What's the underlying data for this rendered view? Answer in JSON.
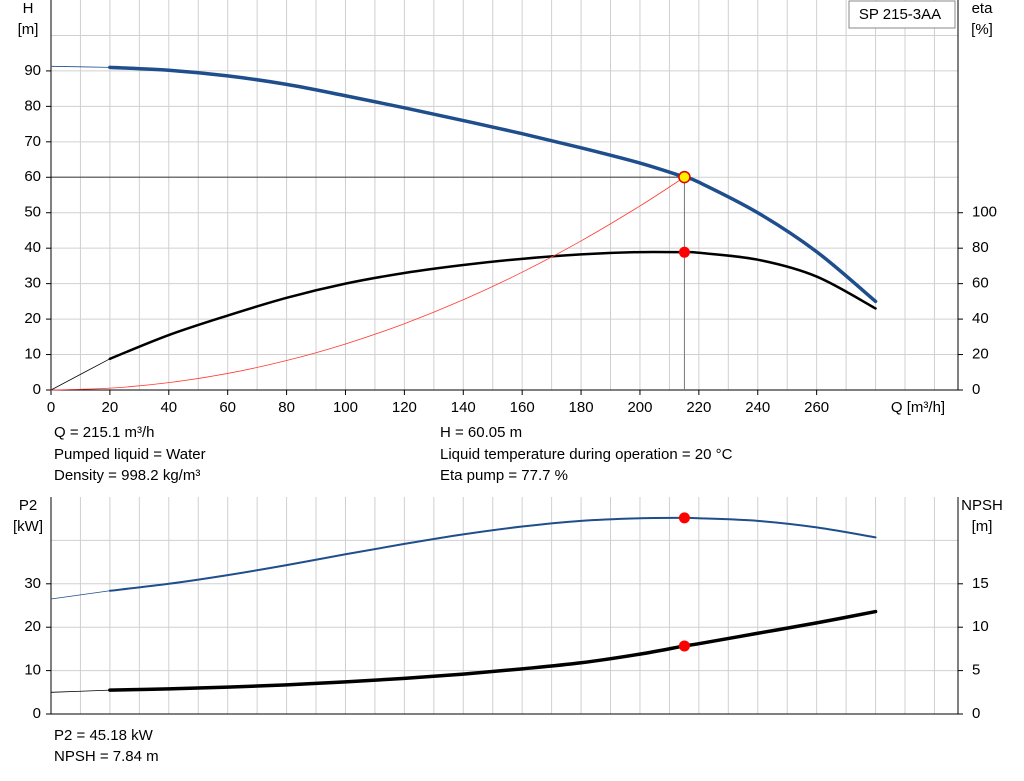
{
  "chart_data": [
    {
      "type": "line",
      "ylabel": "H",
      "yunit": "[m]",
      "y2label": "eta",
      "y2unit": "[%]",
      "xlabel": "Q [m³/h]",
      "badge": "SP 215-3AA",
      "x": [
        0,
        20,
        40,
        60,
        80,
        100,
        120,
        140,
        160,
        180,
        200,
        215.1,
        220,
        240,
        260,
        280
      ],
      "xlim": [
        0,
        308
      ],
      "xticks": [
        0,
        20,
        40,
        60,
        80,
        100,
        120,
        140,
        160,
        180,
        200,
        220,
        240,
        260
      ],
      "ylim": [
        0,
        110
      ],
      "yticks": [
        0,
        10,
        20,
        30,
        40,
        50,
        60,
        70,
        80,
        90
      ],
      "y2lim": [
        0,
        220
      ],
      "y2ticks": [
        0,
        20,
        40,
        60,
        80,
        100
      ],
      "grid": true,
      "thick_from": 20,
      "marker_at": 215.1,
      "crosshair": true,
      "series": [
        {
          "color": "#1f4e8c",
          "width": 3.5,
          "marker": "#ffee00",
          "values": [
            91.3,
            91,
            90.2,
            88.6,
            86.2,
            83,
            79.6,
            76,
            72.3,
            68.3,
            64,
            60.05,
            58.6,
            50,
            39,
            25
          ]
        },
        {
          "color": "#000000",
          "width": 2.5,
          "axis": "y2",
          "marker": "#ff0000",
          "values": [
            0,
            17.6,
            31,
            42,
            52,
            60,
            66,
            70.5,
            74,
            76.5,
            77.8,
            77.7,
            77.4,
            73.5,
            64,
            46
          ]
        },
        {
          "color": "#ff3b2f",
          "width": 0.8,
          "values": [
            0,
            0.52,
            2.08,
            4.67,
            8.31,
            12.98,
            18.69,
            25.44,
            33.23,
            42.05,
            51.91,
            60.05,
            null,
            null,
            null,
            null
          ]
        }
      ]
    },
    {
      "type": "line",
      "ylabel": "P2",
      "yunit": "[kW]",
      "y2label": "NPSH",
      "y2unit": "[m]",
      "x": [
        0,
        20,
        40,
        60,
        80,
        100,
        120,
        140,
        160,
        180,
        200,
        215.1,
        220,
        240,
        260,
        280
      ],
      "xlim": [
        0,
        308
      ],
      "ylim": [
        0,
        50
      ],
      "yticks": [
        0,
        10,
        20,
        30
      ],
      "y2lim": [
        0,
        25
      ],
      "y2ticks": [
        0,
        5,
        10,
        15
      ],
      "grid": true,
      "thick_from": 20,
      "marker_at": 215.1,
      "crosshair": false,
      "series": [
        {
          "color": "#1f4e8c",
          "width": 2,
          "marker": "#ff0000",
          "values": [
            26.5,
            28.4,
            30,
            32,
            34.3,
            36.8,
            39.2,
            41.4,
            43.2,
            44.5,
            45.1,
            45.18,
            45.1,
            44.5,
            43,
            40.7
          ]
        },
        {
          "color": "#000000",
          "width": 3.5,
          "axis": "y2",
          "marker": "#ff0000",
          "values": [
            2.5,
            2.75,
            2.9,
            3.1,
            3.35,
            3.7,
            4.1,
            4.6,
            5.2,
            5.9,
            6.9,
            7.84,
            8.1,
            9.3,
            10.5,
            11.8
          ]
        }
      ]
    }
  ],
  "info": {
    "top_left": [
      "Q = 215.1 m³/h",
      "Pumped liquid = Water",
      "Density = 998.2 kg/m³"
    ],
    "top_right": [
      "H = 60.05 m",
      "Liquid temperature during operation = 20 °C",
      "Eta pump = 77.7 %"
    ],
    "bottom": [
      "P2 = 45.18 kW",
      "NPSH = 7.84 m"
    ]
  }
}
